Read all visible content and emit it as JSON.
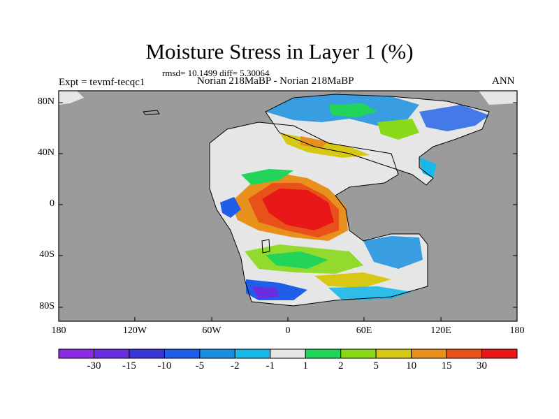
{
  "title": "Moisture Stress in Layer 1 (%)",
  "stats": "rmsd= 10.1499 diff= 5.30064",
  "experiment": "Expt = tevmf-tecqc1",
  "runs": "Norian 218MaBP - Norian 218MaBP",
  "season": "ANN",
  "lat_ticks": [
    "80N",
    "40N",
    "0",
    "40S",
    "80S"
  ],
  "lon_ticks": [
    "180",
    "120W",
    "60W",
    "0",
    "60E",
    "120E",
    "180"
  ],
  "colorbar": {
    "colors": [
      "#8b2be2",
      "#6a2ee0",
      "#3a37d8",
      "#1e5ee8",
      "#1a8fe0",
      "#18b8e8",
      "#e6e6e6",
      "#22d45a",
      "#8ad81a",
      "#d8c816",
      "#e8901c",
      "#e8521a",
      "#e81818"
    ],
    "labels": [
      "-30",
      "-15",
      "-10",
      "-5",
      "-2",
      "-1",
      "1",
      "2",
      "5",
      "10",
      "15",
      "30"
    ]
  },
  "colors": {
    "ocean": "#9b9b9b",
    "land_nodata": "#e6e6e6"
  }
}
